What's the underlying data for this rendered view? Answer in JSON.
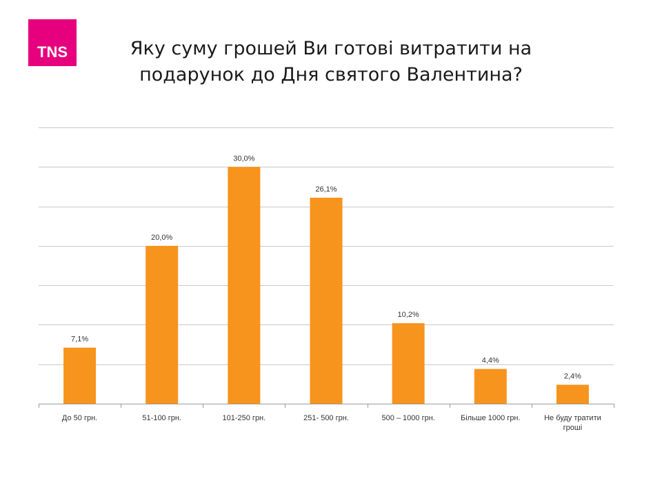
{
  "logo": {
    "text": "TNS",
    "color": "#e6007e"
  },
  "title": {
    "line1": "Яку суму грошей Ви готові витратити на",
    "line2": "подарунок до Дня святого Валентина?"
  },
  "chart_data": {
    "type": "bar",
    "categories": [
      [
        "До 50 грн."
      ],
      [
        "51-100 грн."
      ],
      [
        "101-250 грн."
      ],
      [
        "251- 500 грн."
      ],
      [
        "500 – 1000 грн."
      ],
      [
        "Більше 1000 грн."
      ],
      [
        "Не буду тратити",
        "гроші"
      ]
    ],
    "values": [
      7.1,
      20.0,
      30.0,
      26.1,
      10.2,
      4.4,
      2.4
    ],
    "value_labels": [
      "7,1%",
      "20,0%",
      "30,0%",
      "26,1%",
      "10,2%",
      "4,4%",
      "2,4%"
    ],
    "ylim": [
      0,
      35
    ],
    "grid_step": 5,
    "grid": true,
    "bar_color": "#f7941d",
    "grid_color": "#c8c8c8",
    "axis_color": "#9a9a9a"
  }
}
